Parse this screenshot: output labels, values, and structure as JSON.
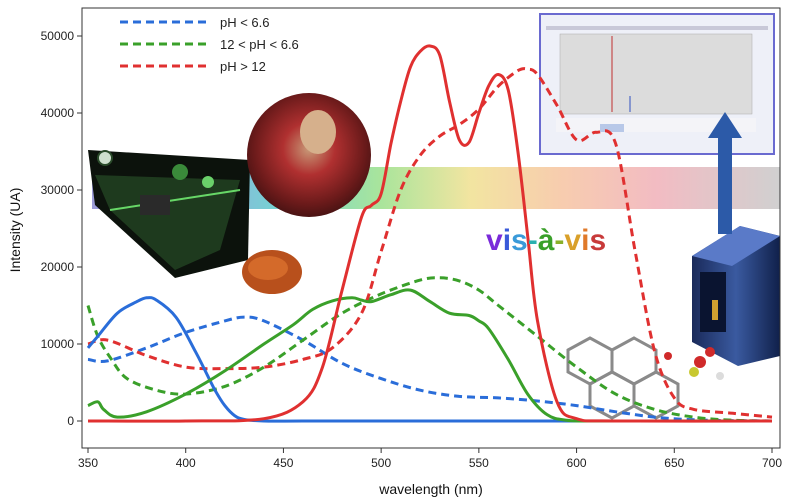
{
  "chart_data": {
    "type": "line",
    "xlabel": "wavelength (nm)",
    "ylabel": "Intensity (UA)",
    "xlim": [
      350,
      700
    ],
    "ylim": [
      -1000,
      53000
    ],
    "xticks": [
      350,
      400,
      450,
      500,
      550,
      600,
      650,
      700
    ],
    "yticks": [
      0,
      10000,
      20000,
      30000,
      40000,
      50000
    ],
    "legend_position": "top-left",
    "series": [
      {
        "name": "pH < 6.6",
        "color": "#2a6dd9",
        "dash": true,
        "x": [
          350,
          360,
          380,
          400,
          420,
          430,
          440,
          460,
          480,
          500,
          520,
          540,
          560,
          580,
          600,
          620,
          640,
          660,
          680,
          700
        ],
        "y": [
          8000,
          7800,
          9500,
          11500,
          13000,
          13500,
          13000,
          10500,
          7500,
          5500,
          4000,
          3200,
          3000,
          2600,
          2000,
          1200,
          500,
          150,
          50,
          0
        ]
      },
      {
        "name": "12 < pH < 6.6",
        "color": "#3aa02a",
        "dash": true,
        "x": [
          350,
          355,
          362,
          370,
          385,
          400,
          420,
          440,
          460,
          480,
          500,
          520,
          530,
          540,
          550,
          560,
          580,
          600,
          620,
          640,
          660,
          680,
          700
        ],
        "y": [
          15000,
          11000,
          8000,
          5500,
          4000,
          3500,
          4500,
          7000,
          10500,
          14000,
          16500,
          18300,
          18600,
          18200,
          17000,
          15000,
          11000,
          7000,
          3500,
          1500,
          500,
          100,
          0
        ]
      },
      {
        "name": "pH > 12",
        "color": "#e03030",
        "dash": true,
        "x": [
          350,
          360,
          380,
          400,
          420,
          440,
          460,
          475,
          490,
          500,
          510,
          520,
          530,
          540,
          550,
          560,
          570,
          575,
          580,
          590,
          600,
          610,
          620,
          630,
          640,
          650,
          660,
          680,
          700
        ],
        "y": [
          10000,
          10500,
          8500,
          7000,
          6800,
          7000,
          8000,
          9500,
          14000,
          22000,
          30000,
          34500,
          37000,
          38500,
          40500,
          43500,
          45500,
          45700,
          45000,
          41000,
          36500,
          37500,
          36000,
          22000,
          9000,
          3000,
          1500,
          1000,
          500
        ]
      },
      {
        "color": "#2a6dd9",
        "dash": false,
        "x": [
          350,
          355,
          365,
          375,
          380,
          385,
          395,
          405,
          410,
          415,
          420,
          425,
          430,
          440,
          460,
          500,
          600,
          700
        ],
        "y": [
          9500,
          11000,
          14000,
          15500,
          16000,
          15700,
          13500,
          9000,
          6500,
          4000,
          2000,
          700,
          200,
          0,
          0,
          0,
          0,
          0
        ]
      },
      {
        "color": "#3aa02a",
        "dash": false,
        "x": [
          350,
          355,
          358,
          365,
          380,
          400,
          420,
          440,
          455,
          465,
          475,
          485,
          490,
          495,
          505,
          515,
          525,
          535,
          545,
          550,
          555,
          565,
          575,
          585,
          595,
          610,
          630,
          700
        ],
        "y": [
          2000,
          2500,
          1500,
          500,
          1200,
          3500,
          6500,
          10000,
          12500,
          14500,
          15600,
          16000,
          15700,
          15500,
          16400,
          17000,
          15500,
          14000,
          13700,
          13000,
          12000,
          8000,
          3500,
          800,
          100,
          0,
          0,
          0
        ]
      },
      {
        "color": "#e03030",
        "dash": false,
        "x": [
          350,
          400,
          440,
          460,
          470,
          480,
          490,
          495,
          500,
          505,
          510,
          515,
          520,
          525,
          530,
          535,
          540,
          545,
          550,
          555,
          560,
          565,
          570,
          575,
          580,
          590,
          600,
          620,
          700
        ],
        "y": [
          0,
          0,
          300,
          2500,
          7000,
          17000,
          26500,
          28000,
          29500,
          36000,
          41500,
          46000,
          48000,
          48700,
          47500,
          41500,
          36500,
          36200,
          40000,
          43500,
          45000,
          43000,
          35000,
          24000,
          13000,
          2500,
          300,
          0,
          0
        ]
      }
    ]
  },
  "legend": {
    "items": [
      {
        "label": "pH < 6.6",
        "color": "#2a6dd9"
      },
      {
        "label": "12 < pH < 6.6",
        "color": "#3aa02a"
      },
      {
        "label": "pH > 12",
        "color": "#e03030"
      }
    ]
  },
  "annotation": {
    "text": "vis-à-vis",
    "letters": [
      {
        "ch": "v",
        "color": "#7a2ad9"
      },
      {
        "ch": "i",
        "color": "#3a5ad9"
      },
      {
        "ch": "s",
        "color": "#3a9ad9"
      },
      {
        "ch": "-",
        "color": "#2ab0b0"
      },
      {
        "ch": "à",
        "color": "#3aa02a"
      },
      {
        "ch": "-",
        "color": "#8ab02a"
      },
      {
        "ch": "v",
        "color": "#d9a02a"
      },
      {
        "ch": "i",
        "color": "#e07a2a"
      },
      {
        "ch": "s",
        "color": "#c83a3a"
      }
    ]
  }
}
